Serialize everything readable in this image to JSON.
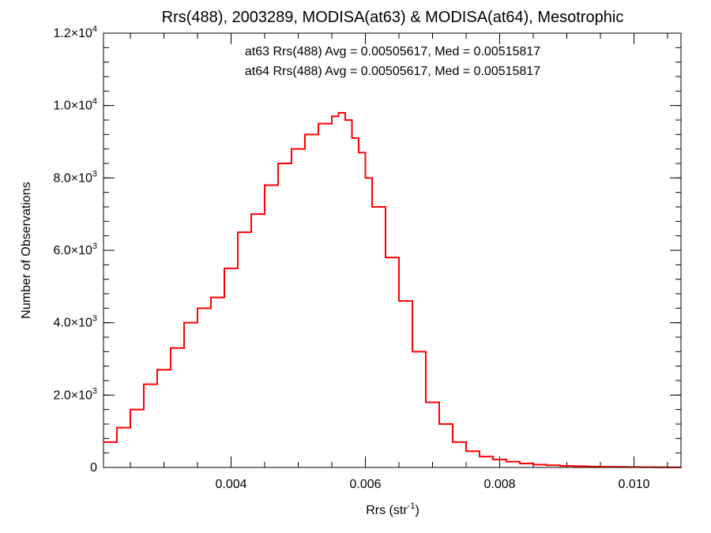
{
  "chart_data": {
    "type": "line",
    "title": "Rrs(488), 2003289, MODISA(at63) & MODISA(at64), Mesotrophic",
    "xlabel": {
      "base": "Rrs (str",
      "sup": "-1",
      "close": ")"
    },
    "ylabel": "Number of Observations",
    "xlim": [
      0.0021,
      0.0107
    ],
    "ylim": [
      0,
      12000
    ],
    "x_ticks": [
      {
        "value": 0.004,
        "label": "0.004"
      },
      {
        "value": 0.006,
        "label": "0.006"
      },
      {
        "value": 0.008,
        "label": "0.008"
      },
      {
        "value": 0.01,
        "label": "0.010"
      }
    ],
    "y_ticks": [
      {
        "value": 0,
        "mant": "0",
        "exp": ""
      },
      {
        "value": 2000,
        "mant": "2.0×10",
        "exp": "3"
      },
      {
        "value": 4000,
        "mant": "4.0×10",
        "exp": "3"
      },
      {
        "value": 6000,
        "mant": "6.0×10",
        "exp": "3"
      },
      {
        "value": 8000,
        "mant": "8.0×10",
        "exp": "3"
      },
      {
        "value": 10000,
        "mant": "1.0×10",
        "exp": "4"
      },
      {
        "value": 12000,
        "mant": "1.2×10",
        "exp": "4"
      }
    ],
    "grid": false,
    "annotations": [
      {
        "text": "at63 Rrs(488) Avg = 0.00505617, Med = 0.00515817",
        "color": "#000000"
      },
      {
        "text": "at64 Rrs(488) Avg = 0.00505617, Med = 0.00515817",
        "color": "#ff0000"
      }
    ],
    "series": [
      {
        "color": "#ff0000",
        "style": "step",
        "x": [
          0.0021,
          0.0023,
          0.0025,
          0.0027,
          0.0029,
          0.0031,
          0.0033,
          0.0035,
          0.0037,
          0.0039,
          0.0041,
          0.0043,
          0.0045,
          0.0047,
          0.0049,
          0.0051,
          0.0053,
          0.0055,
          0.0056,
          0.0057,
          0.0058,
          0.0059,
          0.006,
          0.0061,
          0.0063,
          0.0065,
          0.0067,
          0.0069,
          0.0071,
          0.0073,
          0.0075,
          0.0077,
          0.0079,
          0.0081,
          0.0083,
          0.0085,
          0.0087,
          0.0089,
          0.0091,
          0.0093,
          0.0095,
          0.0097,
          0.0099,
          0.0101,
          0.0103,
          0.0105,
          0.0107
        ],
        "y": [
          700,
          1100,
          1600,
          2300,
          2700,
          3300,
          4000,
          4400,
          4700,
          5500,
          6500,
          7000,
          7800,
          8400,
          8800,
          9200,
          9500,
          9700,
          9800,
          9600,
          9100,
          8700,
          8000,
          7200,
          5800,
          4600,
          3200,
          1800,
          1200,
          700,
          450,
          300,
          220,
          160,
          110,
          80,
          60,
          45,
          35,
          25,
          20,
          15,
          10,
          8,
          5,
          3,
          2
        ]
      }
    ]
  }
}
